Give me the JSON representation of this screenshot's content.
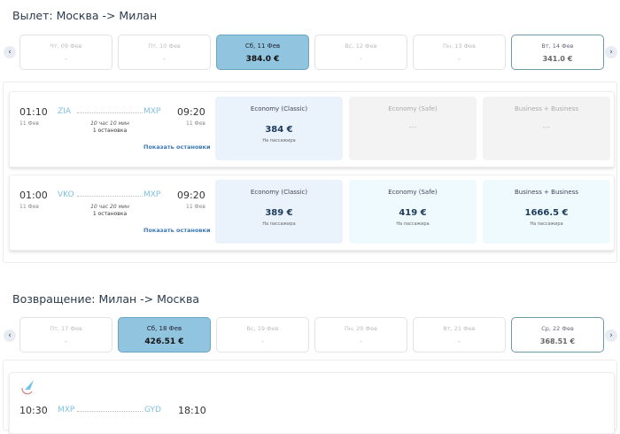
{
  "outbound": {
    "title": "Вылет: Москва -> Милан",
    "dates": [
      {
        "day": "Чт, 09 Фев",
        "price": "-"
      },
      {
        "day": "Пт, 10 Фев",
        "price": "-"
      },
      {
        "day": "Сб, 11 Фев",
        "price": "384.0 €",
        "selected": true
      },
      {
        "day": "Вс, 12 Фев",
        "price": "-"
      },
      {
        "day": "Пн, 13 Фев",
        "price": "-"
      },
      {
        "day": "Вт, 14 Фев",
        "price": "341.0 €"
      }
    ],
    "flights": [
      {
        "dep_time": "01:10",
        "dep_date": "11 Фев",
        "from": "ZIA",
        "to": "MXP",
        "arr_time": "09:20",
        "arr_date": "11 Фев",
        "duration": "10 час 10 мин",
        "stops": "1 остановка",
        "show_stops": "Показать остановки",
        "fares": [
          {
            "name": "Economy (Classic)",
            "price": "384 €",
            "per": "На пассажира"
          },
          {
            "name": "Economy (Safe)",
            "price": "---"
          },
          {
            "name": "Business + Business",
            "price": "---"
          }
        ]
      },
      {
        "dep_time": "01:00",
        "dep_date": "11 Фев",
        "from": "VKO",
        "to": "MXP",
        "arr_time": "09:20",
        "arr_date": "11 Фев",
        "duration": "10 час 20 мин",
        "stops": "1 остановка",
        "show_stops": "Показать остановки",
        "fares": [
          {
            "name": "Economy (Classic)",
            "price": "389 €",
            "per": "На пассажира"
          },
          {
            "name": "Economy (Safe)",
            "price": "419 €",
            "per": "На пассажира"
          },
          {
            "name": "Business + Business",
            "price": "1666.5 €",
            "per": "На пассажира"
          }
        ]
      }
    ]
  },
  "return": {
    "title": "Возвращение: Милан -> Москва",
    "dates": [
      {
        "day": "Пт, 17 Фев",
        "price": "-"
      },
      {
        "day": "Сб, 18 Фев",
        "price": "426.51 €",
        "selected": true
      },
      {
        "day": "Вс, 19 Фев",
        "price": "-"
      },
      {
        "day": "Пн, 20 Фев",
        "price": "-"
      },
      {
        "day": "Вт, 21 Фев",
        "price": "-"
      },
      {
        "day": "Ср, 22 Фев",
        "price": "368.51 €"
      }
    ],
    "flight": {
      "dep_time": "10:30",
      "from": "MXP",
      "to": "GYD",
      "arr_time": "18:10",
      "airline_logo": "airline-logo"
    }
  },
  "icons": {
    "prev": "‹",
    "next": "›"
  },
  "colors": {
    "selected": "#91c4de",
    "link": "#3a78b5",
    "code": "#7fc0e0"
  }
}
